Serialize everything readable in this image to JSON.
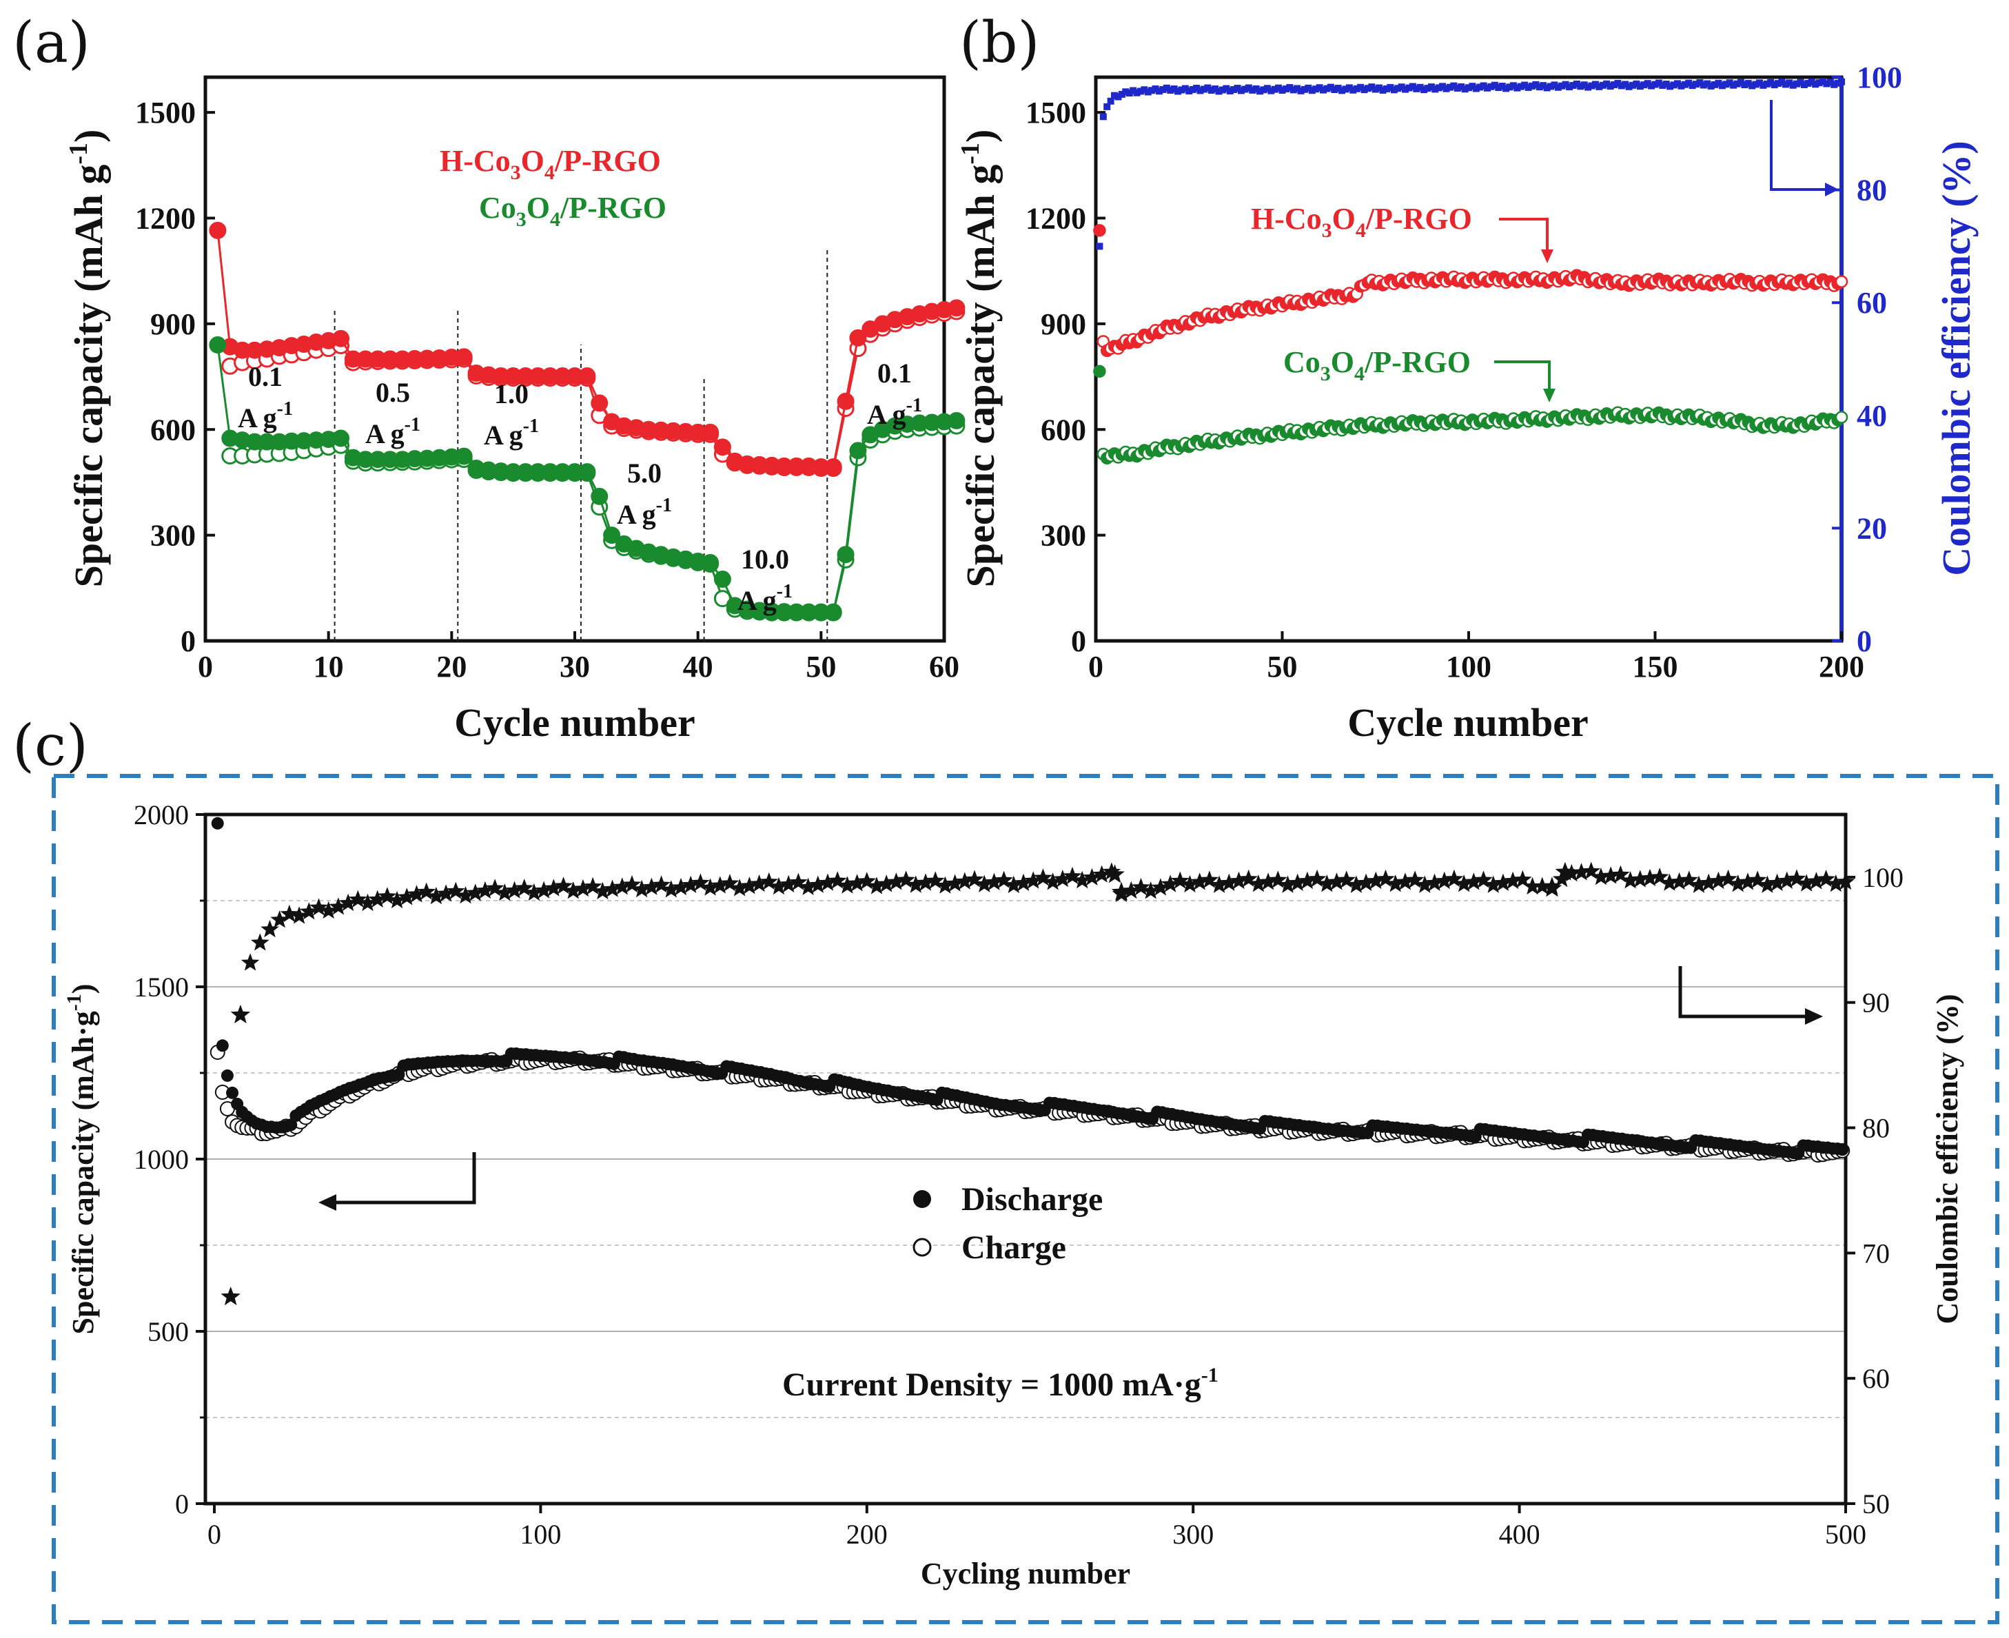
{
  "chart_data": [
    {
      "panel": "(a)",
      "type": "line",
      "xlabel": "Cycle number",
      "ylabel": "Specific capacity (mAh g",
      "ylabel_sup": "-1",
      "xlim": [
        0,
        60
      ],
      "ylim": [
        0,
        1600
      ],
      "xticks": [
        "0",
        "10",
        "20",
        "30",
        "40",
        "50",
        "60"
      ],
      "yticks": [
        "0",
        "300",
        "600",
        "900",
        "1200",
        "1500"
      ],
      "series": [
        {
          "name": "H-Co3O4/P-RGO",
          "name_main": "H-Co",
          "name_sub": "3",
          "name_rest": "O",
          "name_sub2": "4",
          "name_tail": "/P-RGO",
          "color": "#e8262b",
          "discharge": [
            1165,
            835,
            825,
            825,
            828,
            832,
            838,
            842,
            848,
            852,
            858,
            800,
            800,
            800,
            800,
            800,
            801,
            802,
            803,
            805,
            806,
            760,
            755,
            752,
            752,
            752,
            752,
            752,
            752,
            752,
            752,
            675,
            622,
            610,
            605,
            600,
            598,
            596,
            594,
            592,
            592,
            550,
            510,
            502,
            500,
            498,
            496,
            496,
            496,
            494,
            494,
            680,
            860,
            885,
            900,
            912,
            920,
            928,
            935,
            940,
            945
          ],
          "charge": [
            null,
            780,
            790,
            795,
            800,
            808,
            812,
            818,
            825,
            830,
            838,
            790,
            792,
            793,
            794,
            794,
            795,
            796,
            797,
            798,
            800,
            752,
            748,
            746,
            746,
            746,
            746,
            746,
            746,
            746,
            746,
            640,
            610,
            603,
            598,
            594,
            592,
            590,
            588,
            586,
            586,
            530,
            505,
            498,
            496,
            494,
            492,
            492,
            492,
            490,
            490,
            660,
            830,
            870,
            888,
            900,
            910,
            918,
            925,
            930,
            935
          ]
        },
        {
          "name": "Co3O4/P-RGO",
          "name_main": "Co",
          "name_sub": "3",
          "name_rest": "O",
          "name_sub2": "4",
          "name_tail": "/P-RGO",
          "color": "#1a8a2e",
          "discharge": [
            840,
            575,
            570,
            565,
            565,
            565,
            567,
            568,
            570,
            572,
            575,
            520,
            515,
            515,
            515,
            515,
            517,
            518,
            520,
            522,
            524,
            490,
            485,
            482,
            480,
            480,
            480,
            480,
            480,
            480,
            480,
            410,
            300,
            275,
            262,
            252,
            245,
            238,
            232,
            226,
            222,
            175,
            100,
            90,
            86,
            84,
            83,
            82,
            82,
            82,
            82,
            245,
            540,
            585,
            600,
            610,
            615,
            618,
            620,
            622,
            625
          ],
          "charge": [
            null,
            525,
            525,
            528,
            530,
            532,
            535,
            540,
            545,
            550,
            555,
            510,
            505,
            505,
            506,
            507,
            508,
            510,
            512,
            514,
            515,
            484,
            480,
            478,
            476,
            476,
            476,
            476,
            476,
            476,
            476,
            380,
            285,
            265,
            255,
            246,
            240,
            234,
            228,
            222,
            218,
            120,
            90,
            84,
            82,
            80,
            80,
            80,
            80,
            80,
            80,
            230,
            520,
            570,
            585,
            595,
            600,
            604,
            606,
            608,
            610
          ]
        }
      ],
      "rate_labels": [
        {
          "rate": "0.1",
          "unit": "A g"
        },
        {
          "rate": "0.5",
          "unit": "A g"
        },
        {
          "rate": "1.0",
          "unit": "A g"
        },
        {
          "rate": "5.0",
          "unit": "A g"
        },
        {
          "rate": "10.0",
          "unit": "A g"
        },
        {
          "rate": "0.1",
          "unit": "A g"
        }
      ],
      "rate_unit_sup": "-1"
    },
    {
      "panel": "(b)",
      "type": "line",
      "xlabel": "Cycle number",
      "ylabel": "Specific capacity (mAh g",
      "ylabel_sup": "-1",
      "y2label": "Coulombic efficiency (%)",
      "xlim": [
        0,
        200
      ],
      "ylim": [
        0,
        1600
      ],
      "y2lim": [
        0,
        100
      ],
      "xticks": [
        "0",
        "50",
        "100",
        "150",
        "200"
      ],
      "yticks": [
        "0",
        "300",
        "600",
        "900",
        "1200",
        "1500"
      ],
      "y2ticks": [
        "0",
        "20",
        "40",
        "60",
        "80",
        "100"
      ],
      "series": [
        {
          "name": "H-Co3O4/P-RGO",
          "name_main": "H-Co",
          "name_sub": "3",
          "name_rest": "O",
          "name_sub2": "4",
          "name_tail": "/P-RGO",
          "color": "#e8262b",
          "x": [
            1,
            2,
            3,
            5,
            8,
            12,
            20,
            30,
            40,
            50,
            60,
            70,
            72,
            80,
            90,
            100,
            110,
            120,
            130,
            140,
            150,
            160,
            170,
            180,
            190,
            200
          ],
          "values": [
            1165,
            850,
            830,
            830,
            845,
            860,
            890,
            920,
            940,
            955,
            970,
            985,
            1015,
            1020,
            1025,
            1025,
            1025,
            1025,
            1030,
            1015,
            1020,
            1015,
            1020,
            1015,
            1020,
            1015
          ]
        },
        {
          "name": "Co3O4/P-RGO",
          "name_main": "Co",
          "name_sub": "3",
          "name_rest": "O",
          "name_sub2": "4",
          "name_tail": "/P-RGO",
          "color": "#1a8a2e",
          "x": [
            1,
            2,
            3,
            5,
            10,
            20,
            30,
            40,
            50,
            60,
            70,
            80,
            90,
            100,
            110,
            120,
            130,
            140,
            150,
            160,
            170,
            180,
            190,
            200
          ],
          "values": [
            765,
            530,
            525,
            525,
            530,
            550,
            565,
            578,
            590,
            600,
            610,
            615,
            620,
            622,
            625,
            630,
            635,
            640,
            640,
            635,
            625,
            610,
            615,
            630
          ]
        },
        {
          "name": "Coulombic efficiency",
          "color": "#1f28c8",
          "axis": "right",
          "x": [
            1,
            2,
            3,
            5,
            10,
            20,
            40,
            60,
            80,
            100,
            120,
            140,
            160,
            180,
            200
          ],
          "values": [
            70,
            93,
            95,
            96.5,
            97.5,
            97.8,
            97.8,
            97.9,
            98,
            98.2,
            98.4,
            98.6,
            98.7,
            98.8,
            99
          ]
        }
      ]
    },
    {
      "panel": "(c)",
      "type": "scatter",
      "xlabel": "Cycling number",
      "ylabel": "Specific capacity (mAh·g",
      "ylabel_sup": "-1",
      "ylabel_tail": ")",
      "y2label": "Coulombic efficiency (%)",
      "xlim": [
        0,
        500
      ],
      "ylim": [
        0,
        2000
      ],
      "y2lim": [
        50,
        105
      ],
      "xticks": [
        "0",
        "100",
        "200",
        "300",
        "400",
        "500"
      ],
      "yticks": [
        "0",
        "500",
        "1000",
        "1500",
        "2000"
      ],
      "y2ticks": [
        "50",
        "60",
        "70",
        "80",
        "90",
        "100"
      ],
      "annotation": "Current Density = 1000 mA·g",
      "annotation_sup": "-1",
      "series": [
        {
          "name": "Discharge",
          "marker": "filled-circle",
          "x": [
            1,
            2,
            3,
            5,
            8,
            12,
            16,
            20,
            25,
            30,
            40,
            50,
            60,
            70,
            80,
            90,
            100,
            110,
            120,
            130,
            140,
            150,
            160,
            170,
            180,
            190,
            200,
            220,
            240,
            260,
            280,
            300,
            320,
            340,
            360,
            380,
            400,
            420,
            440,
            460,
            480,
            500
          ],
          "values": [
            1970,
            1370,
            1280,
            1200,
            1140,
            1110,
            1100,
            1100,
            1115,
            1150,
            1200,
            1240,
            1265,
            1280,
            1290,
            1295,
            1295,
            1295,
            1290,
            1280,
            1275,
            1265,
            1255,
            1245,
            1230,
            1220,
            1205,
            1185,
            1160,
            1150,
            1135,
            1115,
            1100,
            1090,
            1085,
            1080,
            1070,
            1060,
            1050,
            1040,
            1030,
            1025
          ]
        },
        {
          "name": "Charge",
          "marker": "open-circle",
          "x": [
            1,
            2,
            3,
            5,
            8,
            12,
            16,
            20,
            25,
            30,
            40,
            50,
            60,
            70,
            80,
            90,
            100,
            110,
            120,
            130,
            140,
            150,
            160,
            170,
            180,
            190,
            200,
            220,
            240,
            260,
            280,
            300,
            320,
            340,
            360,
            380,
            400,
            420,
            440,
            460,
            480,
            500
          ],
          "values": [
            1310,
            1220,
            1160,
            1120,
            1095,
            1085,
            1080,
            1082,
            1100,
            1135,
            1185,
            1225,
            1255,
            1270,
            1280,
            1285,
            1288,
            1288,
            1283,
            1273,
            1265,
            1255,
            1245,
            1235,
            1220,
            1210,
            1195,
            1175,
            1150,
            1140,
            1125,
            1105,
            1090,
            1082,
            1077,
            1072,
            1062,
            1052,
            1042,
            1032,
            1022,
            1018
          ]
        },
        {
          "name": "Coulombic efficiency",
          "marker": "star",
          "axis": "right",
          "x": [
            5,
            8,
            10,
            12,
            15,
            20,
            25,
            30,
            40,
            50,
            60,
            80,
            100,
            120,
            150,
            200,
            250,
            276,
            278,
            300,
            350,
            400,
            410,
            414,
            450,
            480,
            500
          ],
          "values": [
            66.5,
            89,
            92,
            94,
            95.5,
            96.5,
            97,
            97.3,
            97.8,
            98.2,
            98.5,
            98.8,
            99,
            99.1,
            99.3,
            99.5,
            99.6,
            100.2,
            98.8,
            99.6,
            99.6,
            99.6,
            99.1,
            100.4,
            99.6,
            99.6,
            99.7
          ]
        }
      ]
    }
  ]
}
